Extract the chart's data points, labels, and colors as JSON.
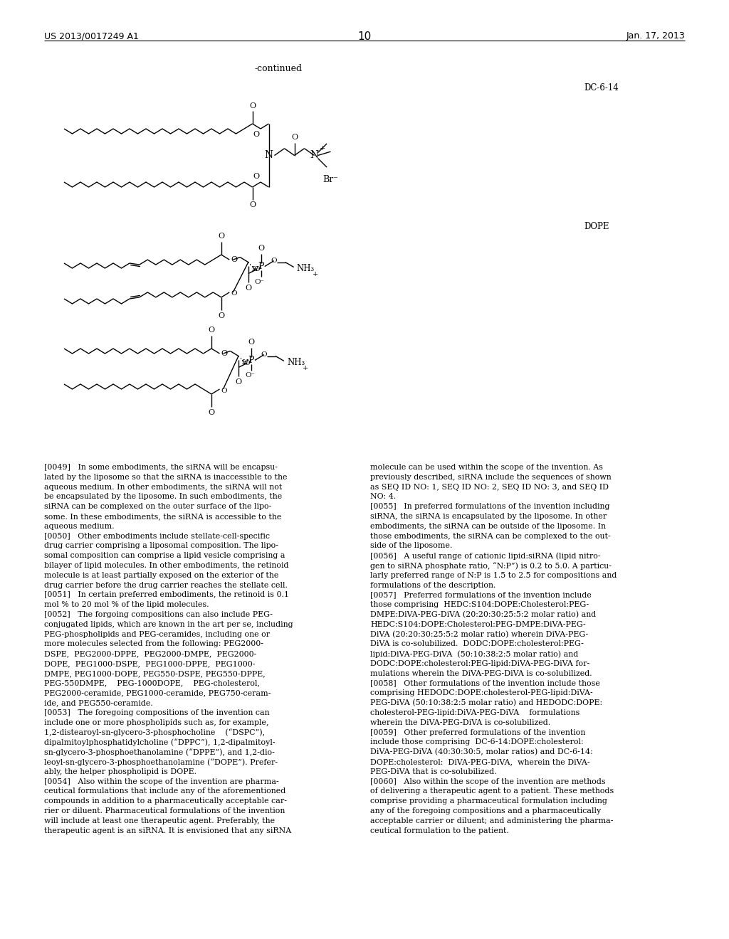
{
  "page_header_left": "US 2013/0017249 A1",
  "page_header_right": "Jan. 17, 2013",
  "page_number": "10",
  "continued_label": "-continued",
  "compound_label_1": "DC-6-14",
  "compound_label_2": "DOPE",
  "background_color": "#ffffff",
  "text_color": "#000000",
  "font_size_body": 7.9,
  "font_size_header": 9.0,
  "body_text_left": [
    "[0049]   In some embodiments, the siRNA will be encapsu-",
    "lated by the liposome so that the siRNA is inaccessible to the",
    "aqueous medium. In other embodiments, the siRNA will not",
    "be encapsulated by the liposome. In such embodiments, the",
    "siRNA can be complexed on the outer surface of the lipo-",
    "some. In these embodiments, the siRNA is accessible to the",
    "aqueous medium.",
    "[0050]   Other embodiments include stellate-cell-specific",
    "drug carrier comprising a liposomal composition. The lipo-",
    "somal composition can comprise a lipid vesicle comprising a",
    "bilayer of lipid molecules. In other embodiments, the retinoid",
    "molecule is at least partially exposed on the exterior of the",
    "drug carrier before the drug carrier reaches the stellate cell.",
    "[0051]   In certain preferred embodiments, the retinoid is 0.1",
    "mol % to 20 mol % of the lipid molecules.",
    "[0052]   The forgoing compositions can also include PEG-",
    "conjugated lipids, which are known in the art per se, including",
    "PEG-phospholipids and PEG-ceramides, including one or",
    "more molecules selected from the following: PEG2000-",
    "DSPE,  PEG2000-DPPE,  PEG2000-DMPE,  PEG2000-",
    "DOPE,  PEG1000-DSPE,  PEG1000-DPPE,  PEG1000-",
    "DMPE, PEG1000-DOPE, PEG550-DSPE, PEG550-DPPE,",
    "PEG-550DMPE,    PEG-1000DOPE,    PEG-cholesterol,",
    "PEG2000-ceramide, PEG1000-ceramide, PEG750-ceram-",
    "ide, and PEG550-ceramide.",
    "[0053]   The foregoing compositions of the invention can",
    "include one or more phospholipids such as, for example,",
    "1,2-distearoyl-sn-glycero-3-phosphocholine    (“DSPC”),",
    "dipalmitoylphosphatidylcholine (“DPPC”), 1,2-dipalmitoyl-",
    "sn-glycero-3-phosphoethanolamine (“DPPE”), and 1,2-dio-",
    "leoyl-sn-glycero-3-phosphoethanolamine (“DOPE”). Prefer-",
    "ably, the helper phospholipid is DOPE.",
    "[0054]   Also within the scope of the invention are pharma-",
    "ceutical formulations that include any of the aforementioned",
    "compounds in addition to a pharmaceutically acceptable car-",
    "rier or diluent. Pharmaceutical formulations of the invention",
    "will include at least one therapeutic agent. Preferably, the",
    "therapeutic agent is an siRNA. It is envisioned that any siRNA"
  ],
  "body_text_right": [
    "molecule can be used within the scope of the invention. As",
    "previously described, siRNA include the sequences of shown",
    "as SEQ ID NO: 1, SEQ ID NO: 2, SEQ ID NO: 3, and SEQ ID",
    "NO: 4.",
    "[0055]   In preferred formulations of the invention including",
    "siRNA, the siRNA is encapsulated by the liposome. In other",
    "embodiments, the siRNA can be outside of the liposome. In",
    "those embodiments, the siRNA can be complexed to the out-",
    "side of the liposome.",
    "[0056]   A useful range of cationic lipid:siRNA (lipid nitro-",
    "gen to siRNA phosphate ratio, “N:P”) is 0.2 to 5.0. A particu-",
    "larly preferred range of N:P is 1.5 to 2.5 for compositions and",
    "formulations of the description.",
    "[0057]   Preferred formulations of the invention include",
    "those comprising  HEDC:S104:DOPE:Cholesterol:PEG-",
    "DMPE:DiVA-PEG-DiVA (20:20:30:25:5:2 molar ratio) and",
    "HEDC:S104:DOPE:Cholesterol:PEG-DMPE:DiVA-PEG-",
    "DiVA (20:20:30:25:5:2 molar ratio) wherein DiVA-PEG-",
    "DiVA is co-solubilized.  DODC:DOPE:cholesterol:PEG-",
    "lipid:DiVA-PEG-DiVA  (50:10:38:2:5 molar ratio) and",
    "DODC:DOPE:cholesterol:PEG-lipid:DiVA-PEG-DiVA for-",
    "mulations wherein the DiVA-PEG-DiVA is co-solubilized.",
    "[0058]   Other formulations of the invention include those",
    "comprising HEDODC:DOPE:cholesterol-PEG-lipid:DiVA-",
    "PEG-DiVA (50:10:38:2:5 molar ratio) and HEDODC:DOPE:",
    "cholesterol-PEG-lipid:DiVA-PEG-DiVA    formulations",
    "wherein the DiVA-PEG-DiVA is co-solubilized.",
    "[0059]   Other preferred formulations of the invention",
    "include those comprising  DC-6-14:DOPE:cholesterol:",
    "DiVA-PEG-DiVA (40:30:30:5, molar ratios) and DC-6-14:",
    "DOPE:cholesterol:  DiVA-PEG-DiVA,  wherein the DiVA-",
    "PEG-DiVA that is co-solubilized.",
    "[0060]   Also within the scope of the invention are methods",
    "of delivering a therapeutic agent to a patient. These methods",
    "comprise providing a pharmaceutical formulation including",
    "any of the foregoing compositions and a pharmaceutically",
    "acceptable carrier or diluent; and administering the pharma-",
    "ceutical formulation to the patient."
  ]
}
